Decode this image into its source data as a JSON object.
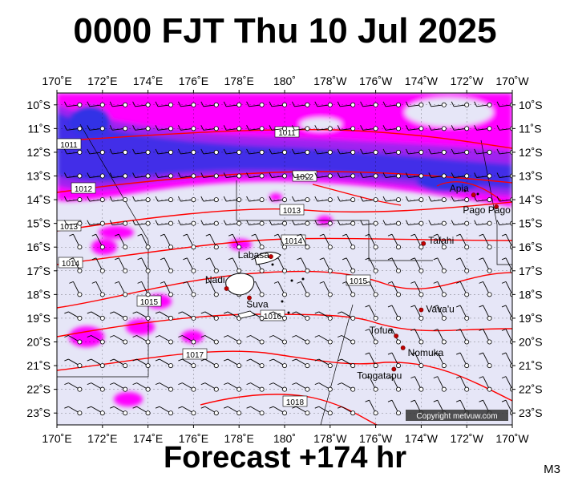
{
  "header": {
    "title": "0000 FJT Thu 10 Jul 2025"
  },
  "footer": {
    "forecast": "Forecast +174 hr",
    "model": "M3"
  },
  "map": {
    "extent": {
      "lon_min": 170,
      "lon_max": 190,
      "lat_min": -23.5,
      "lat_max": -9.5
    },
    "lon_ticks": [
      {
        "lon": 170,
        "label": "170˚E"
      },
      {
        "lon": 172,
        "label": "172˚E"
      },
      {
        "lon": 174,
        "label": "174˚E"
      },
      {
        "lon": 176,
        "label": "176˚E"
      },
      {
        "lon": 178,
        "label": "178˚E"
      },
      {
        "lon": 180,
        "label": "180˚"
      },
      {
        "lon": 182,
        "label": "178˚W"
      },
      {
        "lon": 184,
        "label": "176˚W"
      },
      {
        "lon": 186,
        "label": "174˚W"
      },
      {
        "lon": 188,
        "label": "172˚W"
      },
      {
        "lon": 190,
        "label": "170˚W"
      }
    ],
    "lat_ticks": [
      {
        "lat": -10,
        "label": "10˚S"
      },
      {
        "lat": -11,
        "label": "11˚S"
      },
      {
        "lat": -12,
        "label": "12˚S"
      },
      {
        "lat": -13,
        "label": "13˚S"
      },
      {
        "lat": -14,
        "label": "14˚S"
      },
      {
        "lat": -15,
        "label": "15˚S"
      },
      {
        "lat": -16,
        "label": "16˚S"
      },
      {
        "lat": -17,
        "label": "17˚S"
      },
      {
        "lat": -18,
        "label": "18˚S"
      },
      {
        "lat": -19,
        "label": "19˚S"
      },
      {
        "lat": -20,
        "label": "20˚S"
      },
      {
        "lat": -21,
        "label": "21˚S"
      },
      {
        "lat": -22,
        "label": "22˚S"
      },
      {
        "lat": -23,
        "label": "23˚S"
      }
    ],
    "places": [
      {
        "name": "Apia",
        "lon": 188.3,
        "lat": -13.8
      },
      {
        "name": "Pago Pago",
        "lon": 189.3,
        "lat": -14.3
      },
      {
        "name": "Tafahi",
        "lon": 186.1,
        "lat": -15.85
      },
      {
        "name": "Labasa",
        "lon": 179.4,
        "lat": -16.4
      },
      {
        "name": "Nadi",
        "lon": 177.45,
        "lat": -17.75
      },
      {
        "name": "Suva",
        "lon": 178.45,
        "lat": -18.14
      },
      {
        "name": "Vava'u",
        "lon": 186.0,
        "lat": -18.65
      },
      {
        "name": "Tofua",
        "lon": 184.9,
        "lat": -19.75
      },
      {
        "name": "Nomuka",
        "lon": 185.2,
        "lat": -20.25
      },
      {
        "name": "Tongatapu",
        "lon": 184.8,
        "lat": -21.15
      }
    ],
    "isobars": [
      {
        "value": "1011",
        "label": "1011"
      },
      {
        "value": "1012",
        "label": "1012"
      },
      {
        "value": "1013",
        "label": "1013"
      },
      {
        "value": "1014",
        "label": "1014"
      },
      {
        "value": "1015",
        "label": "1015"
      },
      {
        "value": "1016",
        "label": "1016"
      },
      {
        "value": "1017",
        "label": "1017"
      },
      {
        "value": "1018",
        "label": "1018"
      }
    ],
    "copyright": "Copyright metvuw.com",
    "colors": {
      "background": "#e6e6f7",
      "rain_light": "#ff00ff",
      "rain_mid": "#a020f0",
      "rain_heavy": "#3232e6",
      "isobar": "#ff0000",
      "land": "#ffffff"
    }
  }
}
